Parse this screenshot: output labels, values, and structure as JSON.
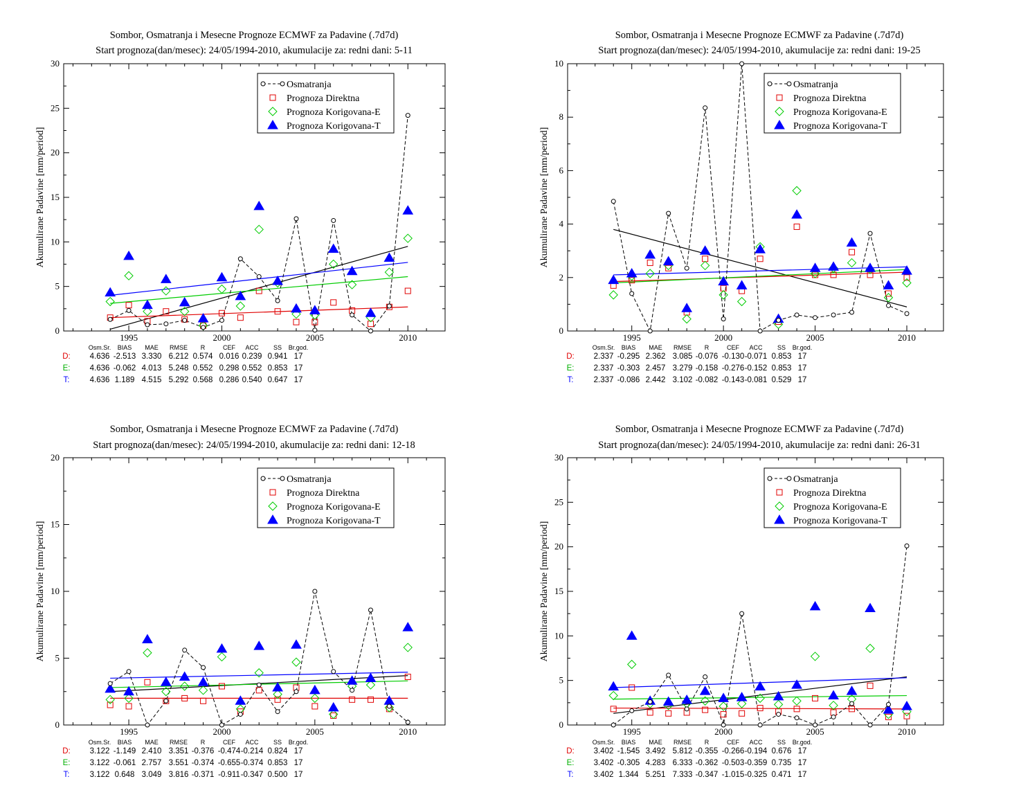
{
  "colors": {
    "obs": "#000000",
    "direct": "#e00000",
    "corrE": "#00cc00",
    "corrT": "#0000ff",
    "D": "#e00000",
    "E": "#00b000",
    "T": "#0000ff"
  },
  "legend": [
    "Osmatranja",
    "Prognoza Direktna",
    "Prognoza Korigovana-E",
    "Prognoza Korigovana-T"
  ],
  "stats_header": [
    "Osm.Sr.",
    "BIAS",
    "MAE",
    "RMSE",
    "R",
    "CEF",
    "ACC",
    "SS",
    "Br.god."
  ],
  "chart_data": [
    {
      "type": "scatter",
      "title": "Sombor, Osmatranja i Mesecne Prognoze ECMWF za Padavine (.7d7d)",
      "subtitle": "Start prognoza(dan/mesec): 24/05/1994-2010, akumulacije za: redni dani: 5-11",
      "ylabel": "Akumulirane Padavine [mm/period]",
      "xlim": [
        1991.5,
        2012
      ],
      "ylim": [
        0,
        30
      ],
      "yticks": [
        0,
        5,
        10,
        15,
        20,
        25,
        30
      ],
      "xticks": [
        1995,
        2000,
        2005,
        2010
      ],
      "x": [
        1994,
        1995,
        1996,
        1997,
        1998,
        1999,
        2000,
        2001,
        2002,
        2003,
        2004,
        2005,
        2006,
        2007,
        2008,
        2009,
        2010
      ],
      "series": [
        {
          "name": "Osmatranja",
          "values": [
            1.3,
            2.3,
            0.7,
            0.8,
            1.2,
            0.4,
            1.2,
            8.1,
            6.1,
            3.4,
            12.6,
            0.1,
            12.4,
            1.8,
            0.0,
            2.8,
            24.2
          ],
          "trend": [
            0.2,
            9.5
          ]
        },
        {
          "name": "Prognoza Direktna",
          "values": [
            1.5,
            2.9,
            1.1,
            2.2,
            1.3,
            0.6,
            2.0,
            1.5,
            4.5,
            2.2,
            1.0,
            1.0,
            3.2,
            2.3,
            0.8,
            2.7,
            4.5
          ],
          "trend": [
            1.5,
            2.7
          ]
        },
        {
          "name": "Prognoza Korigovana-E",
          "values": [
            3.3,
            6.2,
            2.2,
            4.5,
            2.2,
            0.6,
            4.7,
            2.8,
            11.4,
            5.4,
            1.9,
            1.8,
            7.5,
            5.2,
            1.5,
            6.6,
            10.4
          ],
          "trend": [
            3.1,
            6.1
          ]
        },
        {
          "name": "Prognoza Korigovana-T",
          "values": [
            4.3,
            8.4,
            2.9,
            5.8,
            3.2,
            1.4,
            6.0,
            3.9,
            14.0,
            5.6,
            2.5,
            2.3,
            9.2,
            6.7,
            2.0,
            8.2,
            13.5
          ],
          "trend": [
            4.0,
            7.7
          ]
        }
      ],
      "stats": [
        {
          "label": "D:",
          "values": [
            "4.636",
            "-2.513",
            "3.330",
            "6.212",
            "0.574",
            "0.016",
            "0.239",
            "0.941",
            "17"
          ]
        },
        {
          "label": "E:",
          "values": [
            "4.636",
            "-0.062",
            "4.013",
            "5.248",
            "0.552",
            "0.298",
            "0.552",
            "0.853",
            "17"
          ]
        },
        {
          "label": "T:",
          "values": [
            "4.636",
            "1.189",
            "4.515",
            "5.292",
            "0.568",
            "0.286",
            "0.540",
            "0.647",
            "17"
          ]
        }
      ]
    },
    {
      "type": "scatter",
      "title": "Sombor, Osmatranja i Mesecne Prognoze ECMWF za Padavine (.7d7d)",
      "subtitle": "Start prognoza(dan/mesec): 24/05/1994-2010, akumulacije za: redni dani: 19-25",
      "ylabel": "Akumulirane Padavine [mm/period]",
      "xlim": [
        1991.5,
        2012
      ],
      "ylim": [
        0,
        10
      ],
      "yticks": [
        0,
        2,
        4,
        6,
        8,
        10
      ],
      "xticks": [
        1995,
        2000,
        2005,
        2010
      ],
      "x": [
        1994,
        1995,
        1996,
        1997,
        1998,
        1999,
        2000,
        2001,
        2002,
        2003,
        2004,
        2005,
        2006,
        2007,
        2008,
        2009,
        2010
      ],
      "series": [
        {
          "name": "Osmatranja",
          "values": [
            4.85,
            1.4,
            0.0,
            4.4,
            2.35,
            8.35,
            0.45,
            10.0,
            0.0,
            0.4,
            0.6,
            0.5,
            0.6,
            0.7,
            3.65,
            0.95,
            0.65
          ],
          "trend": [
            3.8,
            0.9
          ]
        },
        {
          "name": "Prognoza Direktna",
          "values": [
            1.7,
            1.9,
            2.55,
            2.35,
            0.7,
            2.7,
            1.6,
            1.5,
            2.7,
            0.35,
            3.9,
            2.1,
            2.1,
            2.95,
            2.1,
            1.4,
            2.0
          ],
          "trend": [
            1.85,
            2.2
          ]
        },
        {
          "name": "Prognoza Korigovana-E",
          "values": [
            1.35,
            2.05,
            2.15,
            2.45,
            0.45,
            2.45,
            1.35,
            1.1,
            3.15,
            0.25,
            5.25,
            2.15,
            2.35,
            2.55,
            2.3,
            1.25,
            1.8
          ],
          "trend": [
            1.8,
            2.3
          ]
        },
        {
          "name": "Prognoza Korigovana-T",
          "values": [
            1.9,
            2.15,
            2.85,
            2.6,
            0.85,
            3.0,
            1.85,
            1.7,
            3.05,
            0.45,
            4.35,
            2.35,
            2.4,
            3.3,
            2.35,
            1.7,
            2.25
          ],
          "trend": [
            2.1,
            2.4
          ]
        }
      ],
      "stats": [
        {
          "label": "D:",
          "values": [
            "2.337",
            "-0.295",
            "2.362",
            "3.085",
            "-0.076",
            "-0.130",
            "-0.071",
            "0.853",
            "17"
          ]
        },
        {
          "label": "E:",
          "values": [
            "2.337",
            "-0.303",
            "2.457",
            "3.279",
            "-0.158",
            "-0.276",
            "-0.152",
            "0.853",
            "17"
          ]
        },
        {
          "label": "T:",
          "values": [
            "2.337",
            "-0.086",
            "2.442",
            "3.102",
            "-0.082",
            "-0.143",
            "-0.081",
            "0.529",
            "17"
          ]
        }
      ]
    },
    {
      "type": "scatter",
      "title": "Sombor, Osmatranja i Mesecne Prognoze ECMWF za Padavine (.7d7d)",
      "subtitle": "Start prognoza(dan/mesec): 24/05/1994-2010, akumulacije za: redni dani: 12-18",
      "ylabel": "Akumulirane Padavine [mm/period]",
      "xlim": [
        1991.5,
        2012
      ],
      "ylim": [
        0,
        20
      ],
      "yticks": [
        0,
        5,
        10,
        15,
        20
      ],
      "xticks": [
        1995,
        2000,
        2005,
        2010
      ],
      "x": [
        1994,
        1995,
        1996,
        1997,
        1998,
        1999,
        2000,
        2001,
        2002,
        2003,
        2004,
        2005,
        2006,
        2007,
        2008,
        2009,
        2010
      ],
      "series": [
        {
          "name": "Osmatranja",
          "values": [
            3.1,
            4.0,
            0.0,
            1.8,
            5.6,
            4.3,
            0.0,
            0.8,
            3.0,
            1.0,
            2.5,
            10.0,
            4.0,
            2.6,
            8.6,
            1.4,
            0.2
          ],
          "trend": [
            2.5,
            3.7
          ]
        },
        {
          "name": "Prognoza Direktna",
          "values": [
            1.5,
            1.4,
            3.2,
            1.8,
            2.0,
            1.8,
            2.9,
            1.0,
            2.6,
            1.9,
            2.8,
            1.4,
            0.7,
            1.9,
            1.9,
            1.2,
            3.6
          ],
          "trend": [
            2.0,
            2.0
          ]
        },
        {
          "name": "Prognoza Korigovana-E",
          "values": [
            1.9,
            2.0,
            5.4,
            2.5,
            2.9,
            2.6,
            5.1,
            1.2,
            3.9,
            2.3,
            4.7,
            2.0,
            0.8,
            2.9,
            3.0,
            1.3,
            5.8
          ],
          "trend": [
            2.8,
            3.3
          ]
        },
        {
          "name": "Prognoza Korigovana-T",
          "values": [
            2.7,
            2.5,
            6.4,
            3.2,
            3.6,
            3.2,
            5.7,
            1.8,
            5.9,
            2.8,
            6.0,
            2.6,
            1.3,
            3.3,
            3.5,
            1.8,
            7.3
          ],
          "trend": [
            3.5,
            3.95
          ]
        }
      ],
      "stats": [
        {
          "label": "D:",
          "values": [
            "3.122",
            "-1.149",
            "2.410",
            "3.351",
            "-0.376",
            "-0.474",
            "-0.214",
            "0.824",
            "17"
          ]
        },
        {
          "label": "E:",
          "values": [
            "3.122",
            "-0.061",
            "2.757",
            "3.551",
            "-0.374",
            "-0.655",
            "-0.374",
            "0.853",
            "17"
          ]
        },
        {
          "label": "T:",
          "values": [
            "3.122",
            "0.648",
            "3.049",
            "3.816",
            "-0.371",
            "-0.911",
            "-0.347",
            "0.500",
            "17"
          ]
        }
      ]
    },
    {
      "type": "scatter",
      "title": "Sombor, Osmatranja i Mesecne Prognoze ECMWF za Padavine (.7d7d)",
      "subtitle": "Start prognoza(dan/mesec): 24/05/1994-2010, akumulacije za: redni dani: 26-31",
      "ylabel": "Akumulirane Padavine [mm/period]",
      "xlim": [
        1991.5,
        2012
      ],
      "ylim": [
        0,
        30
      ],
      "yticks": [
        0,
        5,
        10,
        15,
        20,
        25,
        30
      ],
      "xticks": [
        1995,
        2000,
        2005,
        2010
      ],
      "x": [
        1994,
        1995,
        1996,
        1997,
        1998,
        1999,
        2000,
        2001,
        2002,
        2003,
        2004,
        2005,
        2006,
        2007,
        2008,
        2009,
        2010
      ],
      "series": [
        {
          "name": "Osmatranja",
          "values": [
            0.0,
            1.6,
            2.6,
            5.6,
            1.8,
            5.4,
            0.0,
            12.5,
            0.0,
            1.2,
            0.8,
            0.0,
            0.9,
            2.4,
            0.0,
            2.3,
            20.1
          ],
          "trend": [
            1.3,
            5.4
          ]
        },
        {
          "name": "Prognoza Direktna",
          "values": [
            1.8,
            4.2,
            1.4,
            1.3,
            1.4,
            1.7,
            1.2,
            1.3,
            1.9,
            1.5,
            1.8,
            3.0,
            1.4,
            1.8,
            4.4,
            0.9,
            1.0
          ],
          "trend": [
            1.9,
            1.8
          ]
        },
        {
          "name": "Prognoza Korigovana-E",
          "values": [
            3.3,
            6.8,
            2.4,
            2.2,
            2.4,
            2.7,
            2.1,
            2.4,
            3.0,
            2.3,
            2.7,
            7.7,
            2.2,
            2.9,
            8.6,
            1.2,
            1.5
          ],
          "trend": [
            2.9,
            3.3
          ]
        },
        {
          "name": "Prognoza Korigovana-T",
          "values": [
            4.3,
            10.0,
            2.7,
            2.6,
            2.8,
            3.8,
            3.0,
            3.1,
            4.3,
            3.2,
            4.5,
            13.3,
            3.3,
            3.8,
            13.1,
            1.7,
            2.1
          ],
          "trend": [
            4.2,
            5.3
          ]
        }
      ],
      "stats": [
        {
          "label": "D:",
          "values": [
            "3.402",
            "-1.545",
            "3.492",
            "5.812",
            "-0.355",
            "-0.266",
            "-0.194",
            "0.676",
            "17"
          ]
        },
        {
          "label": "E:",
          "values": [
            "3.402",
            "-0.305",
            "4.283",
            "6.333",
            "-0.362",
            "-0.503",
            "-0.359",
            "0.735",
            "17"
          ]
        },
        {
          "label": "T:",
          "values": [
            "3.402",
            "1.344",
            "5.251",
            "7.333",
            "-0.347",
            "-1.015",
            "-0.325",
            "0.471",
            "17"
          ]
        }
      ]
    }
  ]
}
